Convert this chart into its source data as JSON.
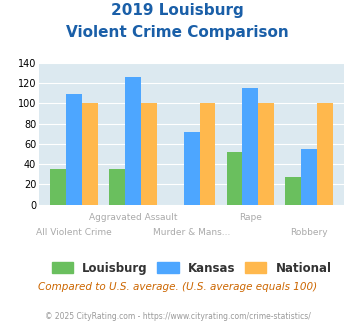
{
  "title_line1": "2019 Louisburg",
  "title_line2": "Violent Crime Comparison",
  "categories": [
    "All Violent Crime",
    "Aggravated Assault",
    "Murder & Mans...",
    "Rape",
    "Robbery"
  ],
  "louisburg": [
    35,
    35,
    0,
    52,
    27
  ],
  "kansas": [
    109,
    126,
    72,
    115,
    55
  ],
  "national": [
    100,
    100,
    100,
    100,
    100
  ],
  "color_louisburg": "#6abf5e",
  "color_kansas": "#4da6ff",
  "color_national": "#ffb84d",
  "color_title": "#1a5fa8",
  "color_bg": "#dce9f0",
  "ylim": [
    0,
    140
  ],
  "yticks": [
    0,
    20,
    40,
    60,
    80,
    100,
    120,
    140
  ],
  "legend_labels": [
    "Louisburg",
    "Kansas",
    "National"
  ],
  "footnote1": "Compared to U.S. average. (U.S. average equals 100)",
  "footnote2": "© 2025 CityRating.com - https://www.cityrating.com/crime-statistics/",
  "footnote1_color": "#cc6600",
  "footnote2_color": "#999999",
  "label_top": [
    "",
    "Aggravated Assault",
    "",
    "Rape",
    ""
  ],
  "label_bot": [
    "All Violent Crime",
    "",
    "Murder & Mans...",
    "",
    "Robbery"
  ],
  "label_color": "#aaaaaa"
}
